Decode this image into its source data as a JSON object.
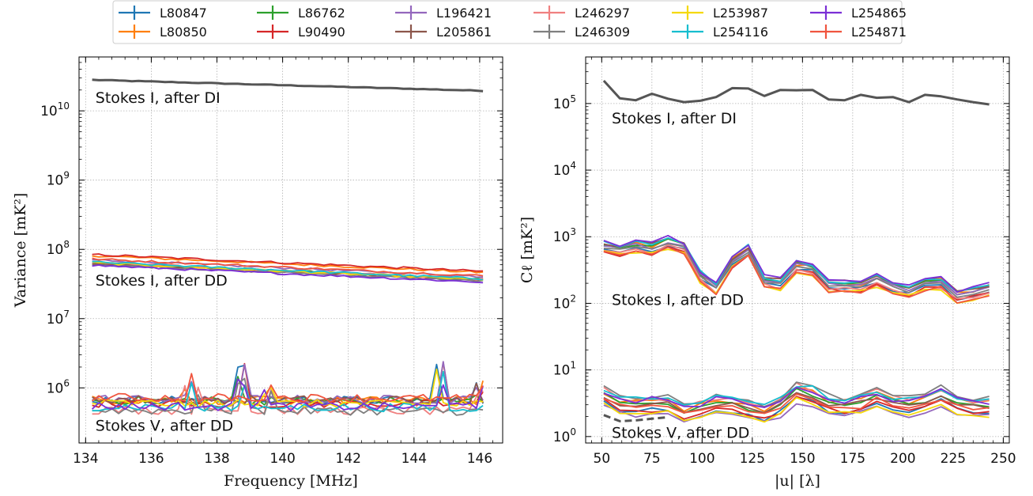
{
  "legend": {
    "entries": [
      {
        "label": "L80847",
        "color": "#1f77b4"
      },
      {
        "label": "L80850",
        "color": "#ff7f0e"
      },
      {
        "label": "L86762",
        "color": "#2ca02c"
      },
      {
        "label": "L90490",
        "color": "#d62728"
      },
      {
        "label": "L196421",
        "color": "#9467bd"
      },
      {
        "label": "L205861",
        "color": "#8c564b"
      },
      {
        "label": "L246297",
        "color": "#f08080"
      },
      {
        "label": "L246309",
        "color": "#7f7f7f"
      },
      {
        "label": "L253987",
        "color": "#f5d90a"
      },
      {
        "label": "L254116",
        "color": "#17becf"
      },
      {
        "label": "L254865",
        "color": "#7b2fd6"
      },
      {
        "label": "L254871",
        "color": "#f0553f"
      }
    ]
  },
  "chart_data": [
    {
      "type": "line",
      "xlabel": "Frequency [MHz]",
      "ylabel": "Variance [mK²]",
      "yscale": "log",
      "xlim": [
        133.8,
        146.7
      ],
      "ylim": [
        160000,
        60000000000
      ],
      "xticks": [
        134,
        136,
        138,
        140,
        142,
        144,
        146
      ],
      "yticks": [
        {
          "value": 1000000,
          "base": "10",
          "exp": "6"
        },
        {
          "value": 10000000,
          "base": "10",
          "exp": "7"
        },
        {
          "value": 100000000,
          "base": "10",
          "exp": "8"
        },
        {
          "value": 1000000000,
          "base": "10",
          "exp": "9"
        },
        {
          "value": 10000000000,
          "base": "10",
          "exp": "10"
        }
      ],
      "grid": true,
      "x_range": [
        134.2,
        146.1
      ],
      "n_points": 60,
      "groups": [
        {
          "label": "Stokes I, after DI",
          "label_at": {
            "x": 134.3,
            "y": 13000000000
          },
          "start": 28000000000,
          "end": 19500000000,
          "spread": 0,
          "noise": 0.01,
          "line": "#555555",
          "single": true
        },
        {
          "label": "Stokes I, after DD",
          "label_at": {
            "x": 134.3,
            "y": 30000000
          },
          "start": 70000000,
          "end": 40000000,
          "spread": 0.18,
          "noise": 0.03
        },
        {
          "label": "Stokes V, after DD",
          "label_at": {
            "x": 134.3,
            "y": 240000
          },
          "start": 600000,
          "end": 580000,
          "spread": 0.3,
          "noise": 0.12,
          "spikes": [
            {
              "x": 137.2,
              "f": 2.2
            },
            {
              "x": 138.7,
              "f": 3.2
            },
            {
              "x": 139.5,
              "f": 2.4
            },
            {
              "x": 144.8,
              "f": 3.5
            },
            {
              "x": 146.0,
              "f": 2.0
            }
          ]
        }
      ]
    },
    {
      "type": "line",
      "xlabel": "|u| [λ]",
      "ylabel": "Cℓ [mK²]",
      "yscale": "log",
      "xlim": [
        42,
        253
      ],
      "ylim": [
        0.8,
        500000
      ],
      "xticks": [
        50,
        75,
        100,
        125,
        150,
        175,
        200,
        225,
        250
      ],
      "yticks": [
        {
          "value": 1,
          "base": "10",
          "exp": "0"
        },
        {
          "value": 10,
          "base": "10",
          "exp": "1"
        },
        {
          "value": 100,
          "base": "10",
          "exp": "2"
        },
        {
          "value": 1000,
          "base": "10",
          "exp": "3"
        },
        {
          "value": 10000,
          "base": "10",
          "exp": "4"
        },
        {
          "value": 100000,
          "base": "10",
          "exp": "5"
        }
      ],
      "grid": true,
      "x_values": [
        51,
        59,
        67,
        75,
        83,
        91,
        99,
        107,
        115,
        123,
        131,
        139,
        147,
        155,
        163,
        171,
        179,
        187,
        195,
        203,
        211,
        219,
        227,
        235,
        243
      ],
      "groups": [
        {
          "label": "Stokes I, after DI",
          "label_at": {
            "x": 55,
            "y": 50000
          },
          "single": true,
          "line": "#555555",
          "base": [
            220000,
            120000,
            112000,
            140000,
            118000,
            105000,
            110000,
            125000,
            170000,
            168000,
            130000,
            160000,
            158000,
            160000,
            115000,
            112000,
            135000,
            122000,
            125000,
            105000,
            135000,
            128000,
            115000,
            105000,
            97000
          ]
        },
        {
          "label": "Stokes I, after DD",
          "label_at": {
            "x": 55,
            "y": 95
          },
          "spread": 0.22,
          "noise": 0.06,
          "base": [
            700,
            620,
            700,
            650,
            800,
            680,
            250,
            170,
            400,
            600,
            210,
            190,
            350,
            320,
            180,
            180,
            175,
            220,
            170,
            150,
            190,
            200,
            125,
            140,
            160
          ]
        },
        {
          "label": "Stokes V, after DD",
          "label_at": {
            "x": 55,
            "y": 0.95
          },
          "spread": 0.3,
          "noise": 0.08,
          "base": [
            4.0,
            3.0,
            2.8,
            3.0,
            2.9,
            2.2,
            2.5,
            3.0,
            2.8,
            2.4,
            2.2,
            2.8,
            4.6,
            4.0,
            3.0,
            2.8,
            3.0,
            3.8,
            3.0,
            2.8,
            3.2,
            4.0,
            3.0,
            2.7,
            2.7
          ],
          "dashed": {
            "color": "#555555",
            "values": [
              2.1,
              1.7,
              1.75,
              1.85,
              1.95
            ]
          }
        }
      ]
    }
  ]
}
